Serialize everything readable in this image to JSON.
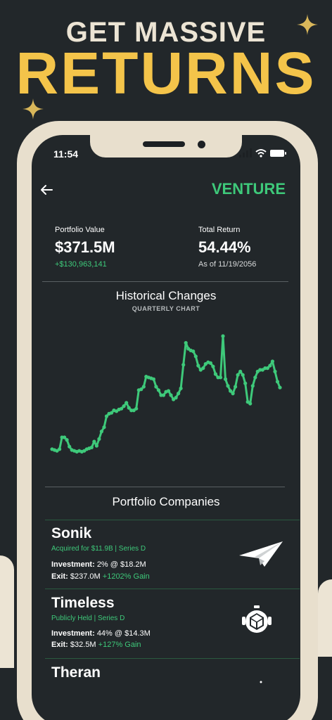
{
  "promo": {
    "line1": "GET MASSIVE",
    "line2": "RETURNS"
  },
  "status_bar": {
    "time": "11:54"
  },
  "header": {
    "title": "VENTURE"
  },
  "stats": {
    "portfolio_label": "Portfolio Value",
    "portfolio_value": "$371.5M",
    "portfolio_change": "+$130,963,141",
    "return_label": "Total Return",
    "return_value": "54.44%",
    "return_date": "As of 11/19/2056"
  },
  "chart": {
    "title": "Historical Changes",
    "subtitle": "QUARTERLY CHART"
  },
  "chart_data": {
    "type": "line",
    "values": [
      6,
      5,
      4,
      6,
      20,
      20,
      17,
      9,
      5,
      4,
      3,
      4,
      3,
      4,
      6,
      7,
      8,
      15,
      10,
      18,
      27,
      32,
      45,
      48,
      49,
      52,
      51,
      53,
      54,
      57,
      61,
      55,
      52,
      52,
      54,
      76,
      77,
      80,
      92,
      91,
      90,
      89,
      80,
      76,
      70,
      70,
      74,
      75,
      70,
      65,
      67,
      72,
      78,
      106,
      132,
      125,
      123,
      122,
      116,
      105,
      100,
      102,
      107,
      109,
      108,
      104,
      95,
      91,
      91,
      140,
      89,
      81,
      75,
      72,
      80,
      94,
      98,
      94,
      84,
      62,
      60,
      81,
      91,
      98,
      100,
      100,
      102,
      102,
      105,
      110,
      98,
      86,
      79
    ],
    "grid": false,
    "legend": "none"
  },
  "companies_title": "Portfolio Companies",
  "companies": [
    {
      "name": "Sonik",
      "status": "Acquired for $11.9B | Series D",
      "investment_label": "Investment:",
      "investment_value": "2% @ $18.2M",
      "exit_label": "Exit:",
      "exit_value": "$237.0M",
      "gain": "+1202% Gain",
      "icon": "paper-plane-icon"
    },
    {
      "name": "Timeless",
      "status": "Publicly Held | Series D",
      "investment_label": "Investment:",
      "investment_value": "44% @ $14.3M",
      "exit_label": "Exit:",
      "exit_value": "$32.5M",
      "gain": "+127% Gain",
      "icon": "robot-head-icon"
    },
    {
      "name": "Theran",
      "status": "",
      "icon": "dot-icon"
    }
  ],
  "colors": {
    "background": "#22272a",
    "accent_green": "#3ec97a",
    "headline_gold": "#f4c44a",
    "headline_cream": "#ece4d4",
    "frame": "#e8dfcd"
  }
}
